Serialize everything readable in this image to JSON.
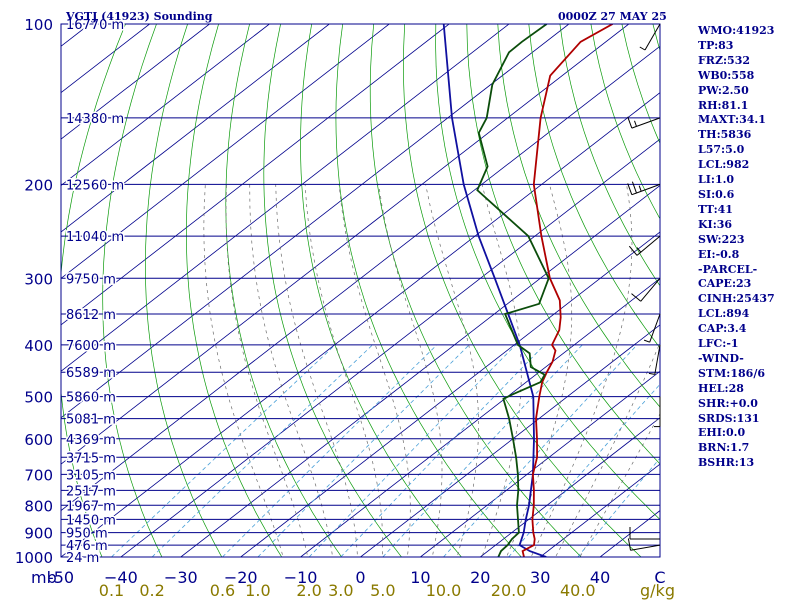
{
  "header": {
    "station": "VGTJ (41923) Sounding",
    "time": "0000Z 27 MAY 25"
  },
  "indices": [
    "WMO:41923",
    "TP:83",
    "FRZ:532",
    "WB0:558",
    "PW:2.50",
    "RH:81.1",
    "MAXT:34.1",
    "TH:5836",
    "L57:5.0",
    "LCL:982",
    "LI:1.0",
    "SI:0.6",
    "TT:41",
    "KI:36",
    "SW:223",
    "EI:-0.8",
    "-PARCEL-",
    "CAPE:23",
    "CINH:25437",
    "LCL:894",
    "CAP:3.4",
    "LFC:-1",
    "-WIND-",
    "STM:186/6",
    "HEL:28",
    "SHR:+0.0",
    "SRDS:131",
    "EHI:0.0",
    "BRN:1.7",
    "BSHR:13"
  ],
  "colors": {
    "isobar": "#00008b",
    "isotherm": "#00008b",
    "dry_adiabat": "#0a9a0a",
    "moist_adiabat": "#6b6b6b",
    "mixing_ratio": "#4aa0d8",
    "temperature": "#b00000",
    "dewpoint": "#0b4d0b",
    "parcel": "#1010a0",
    "wind": "#000000",
    "tick_labels": "#00008b",
    "mixing_labels": "#8a7a00"
  },
  "chart_data": {
    "type": "skew-t",
    "xlabel_unit": "mb",
    "mixing_ratio_unit": "g/kg",
    "pressure_ticks": [
      {
        "p": 100,
        "label": "100"
      },
      {
        "p": 200,
        "label": "200"
      },
      {
        "p": 300,
        "label": "300"
      },
      {
        "p": 400,
        "label": "400"
      },
      {
        "p": 500,
        "label": "500"
      },
      {
        "p": 600,
        "label": "600"
      },
      {
        "p": 700,
        "label": "700"
      },
      {
        "p": 800,
        "label": "800"
      },
      {
        "p": 900,
        "label": "900"
      },
      {
        "p": 1000,
        "label": "1000"
      }
    ],
    "height_labels": [
      {
        "p": 100,
        "label": "16770 m"
      },
      {
        "p": 150,
        "label": "14380 m"
      },
      {
        "p": 200,
        "label": "12560 m"
      },
      {
        "p": 250,
        "label": "11040 m"
      },
      {
        "p": 300,
        "label": "9750 m"
      },
      {
        "p": 350,
        "label": "8612 m"
      },
      {
        "p": 400,
        "label": "7600 m"
      },
      {
        "p": 450,
        "label": "6589 m"
      },
      {
        "p": 500,
        "label": "5860 m"
      },
      {
        "p": 550,
        "label": "5081 m"
      },
      {
        "p": 600,
        "label": "4369 m"
      },
      {
        "p": 650,
        "label": "3715 m"
      },
      {
        "p": 700,
        "label": "3105 m"
      },
      {
        "p": 750,
        "label": "2517 m"
      },
      {
        "p": 800,
        "label": "1967 m"
      },
      {
        "p": 850,
        "label": "1450 m"
      },
      {
        "p": 900,
        "label": "950 m"
      },
      {
        "p": 950,
        "label": "476 m"
      },
      {
        "p": 1000,
        "label": "24 m"
      }
    ],
    "temperature_ticks": [
      {
        "t": -50,
        "label": "-50"
      },
      {
        "t": -40,
        "label": "−40"
      },
      {
        "t": -30,
        "label": "−30"
      },
      {
        "t": -20,
        "label": "−20"
      },
      {
        "t": -10,
        "label": "−10"
      },
      {
        "t": 0,
        "label": "0"
      },
      {
        "t": 10,
        "label": "10"
      },
      {
        "t": 20,
        "label": "20"
      },
      {
        "t": 30,
        "label": "30"
      },
      {
        "t": 40,
        "label": "40"
      },
      {
        "t": 50,
        "label": "C"
      }
    ],
    "mixing_ratio_ticks": [
      {
        "w": 0.1,
        "label": "0.1"
      },
      {
        "w": 0.2,
        "label": "0.2"
      },
      {
        "w": 0.6,
        "label": "0.6"
      },
      {
        "w": 1.0,
        "label": "1.0"
      },
      {
        "w": 2.0,
        "label": "2.0"
      },
      {
        "w": 3.0,
        "label": "3.0"
      },
      {
        "w": 5.0,
        "label": "5.0"
      },
      {
        "w": 10.0,
        "label": "10.0"
      },
      {
        "w": 20.0,
        "label": "20.0"
      },
      {
        "w": 40.0,
        "label": "40.0"
      }
    ],
    "pressure_range": [
      100,
      1000
    ],
    "temperature_range_at_bottom": [
      -50,
      50
    ],
    "temperature_profile": [
      {
        "p": 1000,
        "t": 27.3
      },
      {
        "p": 975,
        "t": 25.8
      },
      {
        "p": 950,
        "t": 26.4
      },
      {
        "p": 925,
        "t": 25.2
      },
      {
        "p": 900,
        "t": 23.6
      },
      {
        "p": 850,
        "t": 20.6
      },
      {
        "p": 800,
        "t": 17.8
      },
      {
        "p": 750,
        "t": 14.6
      },
      {
        "p": 700,
        "t": 11.0
      },
      {
        "p": 650,
        "t": 8.0
      },
      {
        "p": 600,
        "t": 4.0
      },
      {
        "p": 550,
        "t": -0.5
      },
      {
        "p": 500,
        "t": -4.7
      },
      {
        "p": 470,
        "t": -7.3
      },
      {
        "p": 450,
        "t": -8.7
      },
      {
        "p": 430,
        "t": -10.0
      },
      {
        "p": 410,
        "t": -11.9
      },
      {
        "p": 400,
        "t": -13.7
      },
      {
        "p": 375,
        "t": -15.7
      },
      {
        "p": 355,
        "t": -18.2
      },
      {
        "p": 330,
        "t": -22.0
      },
      {
        "p": 300,
        "t": -28.4
      },
      {
        "p": 250,
        "t": -38.9
      },
      {
        "p": 200,
        "t": -51.3
      },
      {
        "p": 150,
        "t": -64.5
      },
      {
        "p": 125,
        "t": -72.0
      },
      {
        "p": 108,
        "t": -74.2
      },
      {
        "p": 100,
        "t": -72.7
      }
    ],
    "dewpoint_profile": [
      {
        "p": 1000,
        "t": 23.0
      },
      {
        "p": 975,
        "t": 22.2
      },
      {
        "p": 950,
        "t": 22.0
      },
      {
        "p": 925,
        "t": 21.4
      },
      {
        "p": 900,
        "t": 21.2
      },
      {
        "p": 850,
        "t": 18.2
      },
      {
        "p": 800,
        "t": 15.0
      },
      {
        "p": 750,
        "t": 12.0
      },
      {
        "p": 700,
        "t": 8.5
      },
      {
        "p": 650,
        "t": 4.5
      },
      {
        "p": 600,
        "t": 0.0
      },
      {
        "p": 550,
        "t": -5.0
      },
      {
        "p": 505,
        "t": -10.2
      },
      {
        "p": 495,
        "t": -9.6
      },
      {
        "p": 470,
        "t": -7.6
      },
      {
        "p": 455,
        "t": -8.5
      },
      {
        "p": 440,
        "t": -12.5
      },
      {
        "p": 415,
        "t": -15.6
      },
      {
        "p": 400,
        "t": -19.4
      },
      {
        "p": 350,
        "t": -28.2
      },
      {
        "p": 335,
        "t": -24.7
      },
      {
        "p": 300,
        "t": -28.6
      },
      {
        "p": 250,
        "t": -41.1
      },
      {
        "p": 205,
        "t": -59.5
      },
      {
        "p": 185,
        "t": -62.9
      },
      {
        "p": 160,
        "t": -71.6
      },
      {
        "p": 150,
        "t": -73.5
      },
      {
        "p": 130,
        "t": -79.7
      },
      {
        "p": 113,
        "t": -83.9
      },
      {
        "p": 108,
        "t": -84.0
      },
      {
        "p": 100,
        "t": -83.7
      }
    ],
    "parcel_profile": [
      {
        "p": 1000,
        "t": 31.0
      },
      {
        "p": 975,
        "t": 27.0
      },
      {
        "p": 950,
        "t": 24.0
      },
      {
        "p": 900,
        "t": 22.0
      },
      {
        "p": 850,
        "t": 19.5
      },
      {
        "p": 800,
        "t": 17.0
      },
      {
        "p": 700,
        "t": 11.0
      },
      {
        "p": 600,
        "t": 3.5
      },
      {
        "p": 500,
        "t": -5.7
      },
      {
        "p": 400,
        "t": -19.1
      },
      {
        "p": 300,
        "t": -37.6
      },
      {
        "p": 250,
        "t": -49.4
      },
      {
        "p": 200,
        "t": -63.0
      },
      {
        "p": 150,
        "t": -79.3
      },
      {
        "p": 100,
        "t": -100.9
      }
    ],
    "wind_barbs": [
      {
        "p": 100,
        "dir": 210,
        "speed": 5
      },
      {
        "p": 150,
        "dir": 250,
        "speed": 15
      },
      {
        "p": 200,
        "dir": 250,
        "speed": 25
      },
      {
        "p": 250,
        "dir": 230,
        "speed": 15
      },
      {
        "p": 300,
        "dir": 220,
        "speed": 10
      },
      {
        "p": 350,
        "dir": 200,
        "speed": 5
      },
      {
        "p": 400,
        "dir": 190,
        "speed": 5
      },
      {
        "p": 500,
        "dir": 180,
        "speed": 5
      },
      {
        "p": 925,
        "dir": 270,
        "speed": 10
      },
      {
        "p": 950,
        "dir": 260,
        "speed": 10
      }
    ]
  }
}
